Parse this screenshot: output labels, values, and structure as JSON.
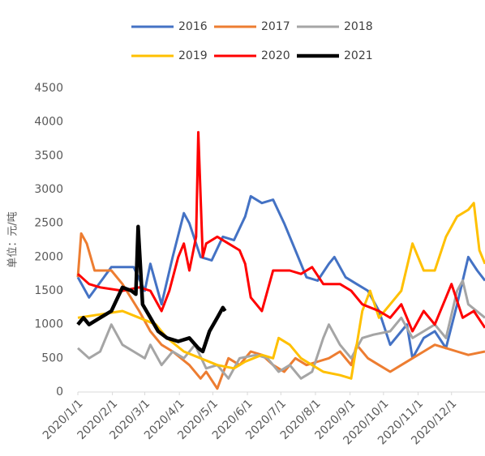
{
  "chart_data": {
    "type": "line",
    "y_label": "单位：元/吨",
    "xlim": [
      0,
      365
    ],
    "ylim": [
      0,
      4500
    ],
    "grid": false,
    "legend": "top",
    "xticks": [
      {
        "value": 0,
        "label": "2020/1/1"
      },
      {
        "value": 31,
        "label": "2020/2/1"
      },
      {
        "value": 60,
        "label": "2020/3/1"
      },
      {
        "value": 91,
        "label": "2020/4/1"
      },
      {
        "value": 121,
        "label": "2020/5/1"
      },
      {
        "value": 152,
        "label": "2020/6/1"
      },
      {
        "value": 182,
        "label": "2020/7/1"
      },
      {
        "value": 213,
        "label": "2020/8/1"
      },
      {
        "value": 244,
        "label": "2020/9/1"
      },
      {
        "value": 274,
        "label": "2020/10/1"
      },
      {
        "value": 305,
        "label": "2020/11/1"
      },
      {
        "value": 335,
        "label": "2020/12/1"
      }
    ],
    "yticks": [
      0,
      500,
      1000,
      1500,
      2000,
      2500,
      3000,
      3500,
      4000,
      4500
    ],
    "series": [
      {
        "name": "2016",
        "color": "#4472c4",
        "x": [
          0,
          10,
          30,
          50,
          60,
          65,
          75,
          85,
          95,
          100,
          110,
          120,
          130,
          140,
          150,
          155,
          165,
          175,
          185,
          195,
          205,
          215,
          225,
          230,
          240,
          250,
          260,
          270,
          280,
          290,
          295,
          300,
          310,
          320,
          330,
          340,
          350,
          358,
          365
        ],
        "values": [
          1700,
          1400,
          1850,
          1850,
          1500,
          1900,
          1300,
          2000,
          2650,
          2500,
          2000,
          1950,
          2300,
          2250,
          2600,
          2900,
          2800,
          2850,
          2500,
          2100,
          1700,
          1650,
          1900,
          2000,
          1700,
          1600,
          1500,
          1200,
          700,
          900,
          1000,
          500,
          800,
          900,
          650,
          1300,
          2000,
          1800,
          1650
        ]
      },
      {
        "name": "2017",
        "color": "#ed7d31",
        "x": [
          0,
          3,
          8,
          15,
          30,
          40,
          55,
          65,
          75,
          85,
          100,
          110,
          115,
          125,
          135,
          145,
          155,
          165,
          175,
          185,
          195,
          205,
          215,
          225,
          235,
          245,
          250,
          260,
          270,
          280,
          290,
          300,
          310,
          320,
          330,
          340,
          350,
          365
        ],
        "values": [
          1700,
          2350,
          2200,
          1800,
          1800,
          1600,
          1200,
          900,
          700,
          600,
          400,
          200,
          300,
          50,
          500,
          400,
          600,
          550,
          400,
          300,
          500,
          400,
          450,
          500,
          600,
          400,
          700,
          500,
          400,
          300,
          400,
          500,
          600,
          700,
          650,
          600,
          550,
          600
        ]
      },
      {
        "name": "2018",
        "color": "#a5a5a5",
        "x": [
          0,
          10,
          20,
          30,
          40,
          50,
          60,
          65,
          75,
          85,
          95,
          105,
          115,
          125,
          135,
          145,
          160,
          170,
          180,
          190,
          200,
          210,
          220,
          225,
          235,
          245,
          255,
          265,
          280,
          290,
          300,
          310,
          320,
          330,
          340,
          345,
          350,
          365
        ],
        "values": [
          650,
          500,
          600,
          1000,
          700,
          600,
          500,
          700,
          400,
          600,
          500,
          700,
          350,
          400,
          200,
          500,
          550,
          500,
          300,
          400,
          200,
          300,
          800,
          1000,
          700,
          500,
          800,
          850,
          900,
          1100,
          800,
          900,
          1000,
          800,
          1500,
          1650,
          1300,
          1100
        ]
      },
      {
        "name": "2019",
        "color": "#ffc000",
        "x": [
          0,
          20,
          40,
          55,
          70,
          80,
          95,
          110,
          125,
          140,
          150,
          165,
          175,
          180,
          190,
          200,
          210,
          220,
          235,
          245,
          255,
          262,
          270,
          280,
          290,
          300,
          310,
          320,
          330,
          340,
          350,
          355,
          360,
          365
        ],
        "values": [
          1100,
          1150,
          1200,
          1100,
          1000,
          800,
          600,
          500,
          400,
          350,
          450,
          550,
          500,
          800,
          700,
          500,
          400,
          300,
          250,
          200,
          1200,
          1500,
          1100,
          1300,
          1500,
          2200,
          1800,
          1800,
          2300,
          2600,
          2700,
          2800,
          2100,
          1900
        ]
      },
      {
        "name": "2020",
        "color": "#ff0000",
        "x": [
          0,
          10,
          20,
          40,
          55,
          65,
          75,
          82,
          90,
          95,
          100,
          106,
          108,
          112,
          115,
          125,
          135,
          145,
          150,
          155,
          165,
          175,
          190,
          200,
          210,
          220,
          235,
          245,
          255,
          270,
          280,
          290,
          300,
          310,
          320,
          330,
          335,
          345,
          355,
          365
        ],
        "values": [
          1750,
          1600,
          1550,
          1500,
          1550,
          1500,
          1200,
          1500,
          2000,
          2200,
          1800,
          2300,
          3850,
          2000,
          2200,
          2300,
          2200,
          2100,
          1900,
          1400,
          1200,
          1800,
          1800,
          1750,
          1850,
          1600,
          1600,
          1500,
          1300,
          1200,
          1100,
          1300,
          900,
          1200,
          1000,
          1400,
          1600,
          1100,
          1200,
          950
        ]
      },
      {
        "name": "2021",
        "color": "#000000",
        "x": [
          0,
          5,
          10,
          20,
          30,
          40,
          48,
          52,
          54,
          58,
          65,
          72,
          80,
          90,
          100,
          108,
          112,
          118,
          125,
          130,
          132
        ],
        "values": [
          1000,
          1100,
          1000,
          1100,
          1200,
          1550,
          1500,
          1450,
          2450,
          1300,
          1100,
          900,
          800,
          750,
          800,
          650,
          600,
          900,
          1100,
          1250,
          1200
        ]
      }
    ]
  }
}
